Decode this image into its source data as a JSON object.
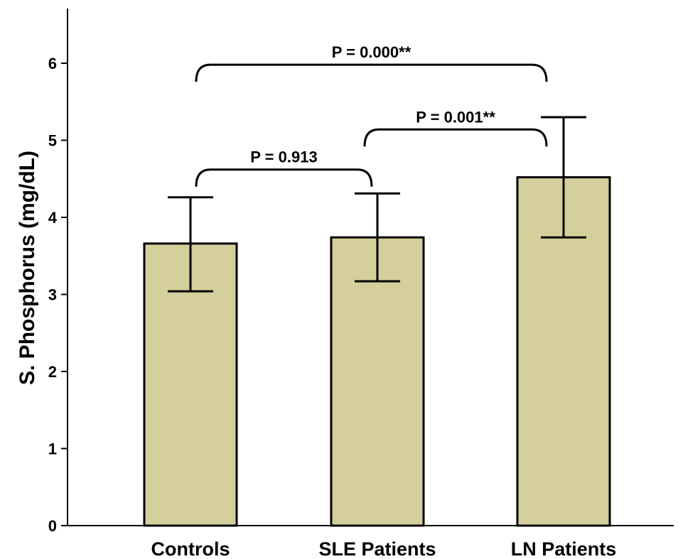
{
  "chart_data": {
    "type": "bar",
    "ylabel": "S. Phosphorus (mg/dL)",
    "xlabel": "",
    "ylim": [
      0,
      6.6
    ],
    "yticks": [
      "0",
      "1",
      "2",
      "3",
      "4",
      "5",
      "6"
    ],
    "categories": [
      "Controls",
      "SLE Patients",
      "LN Patients"
    ],
    "values": [
      3.66,
      3.74,
      4.52
    ],
    "error_low": [
      3.04,
      3.17,
      3.74
    ],
    "error_high": [
      4.26,
      4.31,
      5.3
    ],
    "bar_color": "#d4cf9b",
    "comparisons": [
      {
        "from": "Controls",
        "to": "SLE Patients",
        "label": "P = 0.913",
        "y": 4.62
      },
      {
        "from": "SLE Patients",
        "to": "LN Patients",
        "label": "P = 0.001**",
        "y": 5.14
      },
      {
        "from": "Controls",
        "to": "LN Patients",
        "label": "P = 0.000**",
        "y": 5.98
      }
    ]
  }
}
